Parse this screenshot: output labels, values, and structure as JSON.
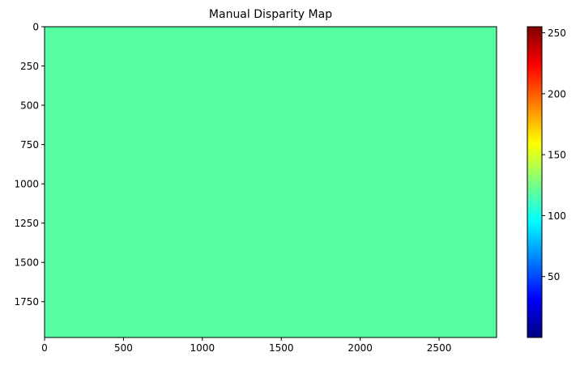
{
  "chart_data": {
    "type": "heatmap",
    "title": "Manual Disparity Map",
    "xlabel": "",
    "ylabel": "",
    "x_ticks": [
      0,
      500,
      1000,
      1500,
      2000,
      2500
    ],
    "y_ticks": [
      0,
      250,
      500,
      750,
      1000,
      1250,
      1500,
      1750
    ],
    "xlim": [
      0,
      2864
    ],
    "ylim": [
      1978,
      0
    ],
    "image_value": 120,
    "uniform_fill_color": "#55ffa1",
    "colorbar": {
      "colormap": "jet",
      "range": [
        0,
        255
      ],
      "ticks": [
        50,
        100,
        150,
        200,
        250
      ],
      "colors": [
        "#00007f",
        "#0000ff",
        "#007fff",
        "#00ffff",
        "#7fff7f",
        "#ffff00",
        "#ff7f00",
        "#ff0000",
        "#7f0000"
      ]
    }
  }
}
